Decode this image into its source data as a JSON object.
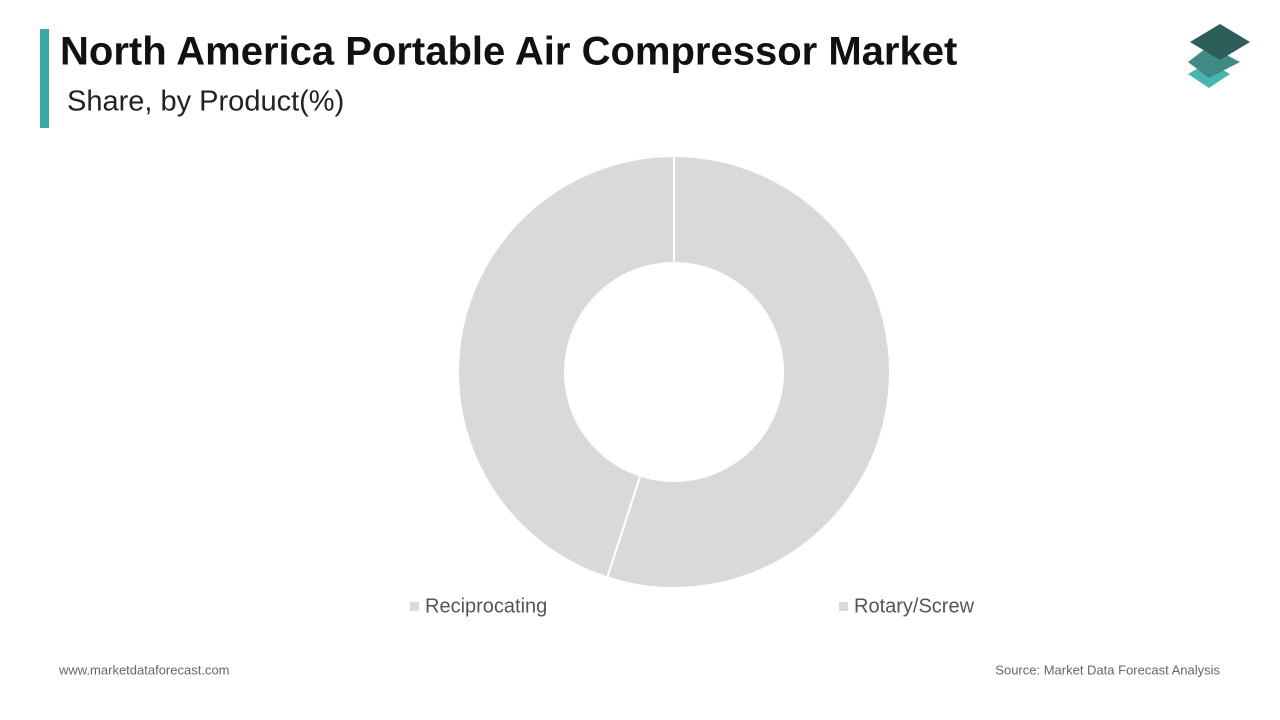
{
  "chart_data": {
    "type": "donut",
    "title": "North America Portable Air Compressor Market",
    "subtitle": "Share, by Product(%)",
    "categories": [
      "Reciprocating",
      "Rotary/Screw"
    ],
    "values": [
      55,
      45
    ],
    "colors": [
      "#d9d9d9",
      "#d9d9d9"
    ],
    "website": "www.marketdataforecast.com",
    "source": "Source: Market Data Forecast Analysis"
  }
}
